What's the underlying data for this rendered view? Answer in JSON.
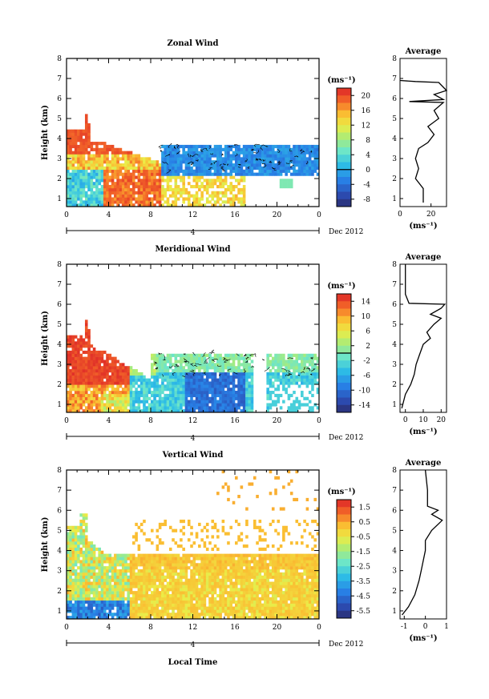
{
  "chart_data": [
    {
      "type": "heatmap",
      "title": "Zonal Wind",
      "ylabel": "Height (km)",
      "xlabel": "",
      "xlim": [
        0,
        24
      ],
      "ylim": [
        0.6,
        8.0
      ],
      "xticks": [
        "0",
        "4",
        "8",
        "12",
        "16",
        "20",
        "0"
      ],
      "yticks": [
        "1",
        "2",
        "3",
        "4",
        "5",
        "6",
        "7",
        "8"
      ],
      "date_marker": "4",
      "date_label": "Dec 2012",
      "colorbar": {
        "unit": "(ms⁻¹)",
        "ticks": [
          "20",
          "16",
          "12",
          "8",
          "4",
          "0",
          "-4",
          "-8"
        ],
        "range": [
          -10,
          22
        ],
        "zero_line": 0
      },
      "average_profile": {
        "title": "Average",
        "xlabel": "(ms⁻¹)",
        "xticks": [
          "0",
          "20"
        ],
        "xlim": [
          0,
          30
        ],
        "points": [
          [
            15,
            0.8
          ],
          [
            15,
            1.5
          ],
          [
            10,
            2.0
          ],
          [
            12,
            2.5
          ],
          [
            10,
            3.0
          ],
          [
            12,
            3.5
          ],
          [
            18,
            3.8
          ],
          [
            22,
            4.2
          ],
          [
            18,
            4.6
          ],
          [
            25,
            5.0
          ],
          [
            22,
            5.4
          ],
          [
            28,
            5.8
          ],
          [
            6,
            5.85
          ],
          [
            28,
            5.95
          ],
          [
            22,
            6.2
          ],
          [
            30,
            6.4
          ],
          [
            25,
            6.8
          ],
          [
            10,
            6.85
          ],
          [
            0,
            6.9
          ]
        ]
      }
    },
    {
      "type": "heatmap",
      "title": "Meridional Wind",
      "ylabel": "Height (km)",
      "xlabel": "",
      "xlim": [
        0,
        24
      ],
      "ylim": [
        0.6,
        8.0
      ],
      "xticks": [
        "0",
        "4",
        "8",
        "12",
        "16",
        "20",
        "0"
      ],
      "yticks": [
        "1",
        "2",
        "3",
        "4",
        "5",
        "6",
        "7",
        "8"
      ],
      "date_marker": "4",
      "date_label": "Dec 2012",
      "colorbar": {
        "unit": "(ms⁻¹)",
        "ticks": [
          "14",
          "10",
          "6",
          "2",
          "-2",
          "-6",
          "-10",
          "-14"
        ],
        "range": [
          -16,
          16
        ],
        "zero_line": 0
      },
      "average_profile": {
        "title": "Average",
        "xlabel": "(ms⁻¹)",
        "xticks": [
          "0",
          "10",
          "20"
        ],
        "xlim": [
          -3,
          23
        ],
        "points": [
          [
            -2,
            0.8
          ],
          [
            0,
            1.5
          ],
          [
            3,
            2.0
          ],
          [
            5,
            2.5
          ],
          [
            6,
            3.0
          ],
          [
            8,
            3.5
          ],
          [
            10,
            4.0
          ],
          [
            14,
            4.3
          ],
          [
            12,
            4.6
          ],
          [
            16,
            5.0
          ],
          [
            20,
            5.3
          ],
          [
            14,
            5.5
          ],
          [
            20,
            5.8
          ],
          [
            22,
            6.0
          ],
          [
            2,
            6.05
          ],
          [
            0,
            6.5
          ],
          [
            0,
            8.0
          ]
        ]
      }
    },
    {
      "type": "heatmap",
      "title": "Vertical Wind",
      "ylabel": "Height (km)",
      "xlabel": "Local Time",
      "xlim": [
        0,
        24
      ],
      "ylim": [
        0.6,
        8.0
      ],
      "xticks": [
        "0",
        "4",
        "8",
        "12",
        "16",
        "20",
        "0"
      ],
      "yticks": [
        "1",
        "2",
        "3",
        "4",
        "5",
        "6",
        "7",
        "8"
      ],
      "date_marker": "4",
      "date_label": "Dec 2012",
      "colorbar": {
        "unit": "(ms⁻¹)",
        "ticks": [
          "1.5",
          "0.5",
          "-0.5",
          "-1.5",
          "-2.5",
          "-3.5",
          "-4.5",
          "-5.5"
        ],
        "range": [
          -6,
          2
        ],
        "zero_line": null
      },
      "average_profile": {
        "title": "Average",
        "xlabel": "(ms⁻¹)",
        "xticks": [
          "-1",
          "0",
          "1"
        ],
        "xlim": [
          -1.2,
          1.0
        ],
        "points": [
          [
            -1.1,
            0.8
          ],
          [
            -0.8,
            1.2
          ],
          [
            -0.5,
            1.8
          ],
          [
            -0.3,
            2.5
          ],
          [
            -0.2,
            3.0
          ],
          [
            -0.1,
            3.5
          ],
          [
            0.0,
            4.0
          ],
          [
            0.0,
            4.5
          ],
          [
            0.3,
            5.0
          ],
          [
            0.8,
            5.5
          ],
          [
            0.3,
            5.8
          ],
          [
            0.6,
            6.0
          ],
          [
            0.1,
            6.2
          ],
          [
            0.1,
            7.0
          ],
          [
            0.0,
            8.0
          ]
        ]
      }
    }
  ]
}
